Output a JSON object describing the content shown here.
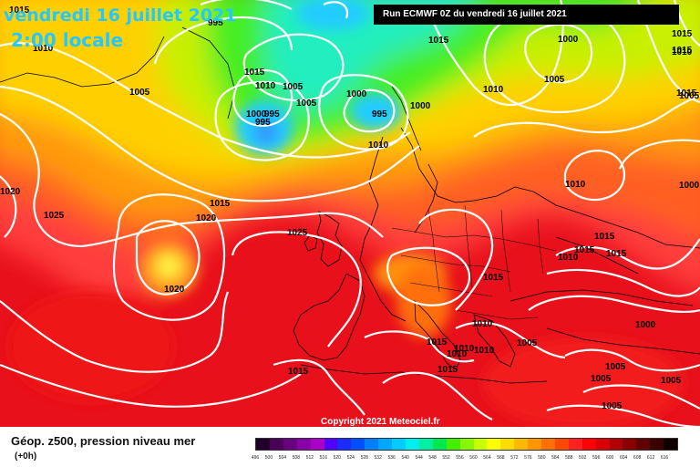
{
  "map": {
    "date_title": "vendredi 16 juillet 2021",
    "hour_title": "2:00 locale",
    "run_info": "Run ECMWF 0Z du vendredi 16 juillet 2021",
    "copyright": "Copyright 2021 Meteociel.fr",
    "parameter": "Géop. z500, pression niveau mer",
    "lead_time": "(+0h)",
    "isobar_labels": [
      "1015",
      "995",
      "1010",
      "1005",
      "1005",
      "1010",
      "1015",
      "1000",
      "995",
      "995",
      "1005",
      "1000",
      "1010",
      "1000",
      "995",
      "1000",
      "1015",
      "1020",
      "1010",
      "1015",
      "1015",
      "1000",
      "1005",
      "1010",
      "1015",
      "1010",
      "1005",
      "1025",
      "1020",
      "1025",
      "1020",
      "1010",
      "1015",
      "1015",
      "1015",
      "1010",
      "1015",
      "1015",
      "1010",
      "1010",
      "1010",
      "1005",
      "1000",
      "1015",
      "1015",
      "1015",
      "1005",
      "1005",
      "1005",
      "1005"
    ],
    "colors": {
      "deep_red": "#e8101a",
      "red": "#ff3c3c",
      "orange": "#ff8800",
      "yellow": "#ffff22",
      "green": "#44ee22",
      "cyan": "#22ddff",
      "blue": "#3399ff"
    },
    "scale_values": [
      "496",
      "500",
      "504",
      "508",
      "512",
      "516",
      "520",
      "524",
      "528",
      "532",
      "536",
      "540",
      "544",
      "548",
      "552",
      "556",
      "560",
      "564",
      "568",
      "572",
      "576",
      "580",
      "584",
      "588",
      "592",
      "596",
      "600",
      "604",
      "608",
      "612",
      "616"
    ],
    "scale_colors": [
      "#200028",
      "#4a0058",
      "#6a0080",
      "#8a00a8",
      "#aa00c8",
      "#5000ff",
      "#1a2cff",
      "#0050ff",
      "#0080ff",
      "#00a8ff",
      "#00ccff",
      "#00eeee",
      "#00f0a0",
      "#00e850",
      "#44f000",
      "#88f800",
      "#c8ff00",
      "#ffff00",
      "#ffdc00",
      "#ffb800",
      "#ff9600",
      "#ff7000",
      "#ff4800",
      "#ff2020",
      "#ff0000",
      "#d80000",
      "#b00000",
      "#880000",
      "#600000",
      "#3a0000",
      "#100000"
    ]
  }
}
